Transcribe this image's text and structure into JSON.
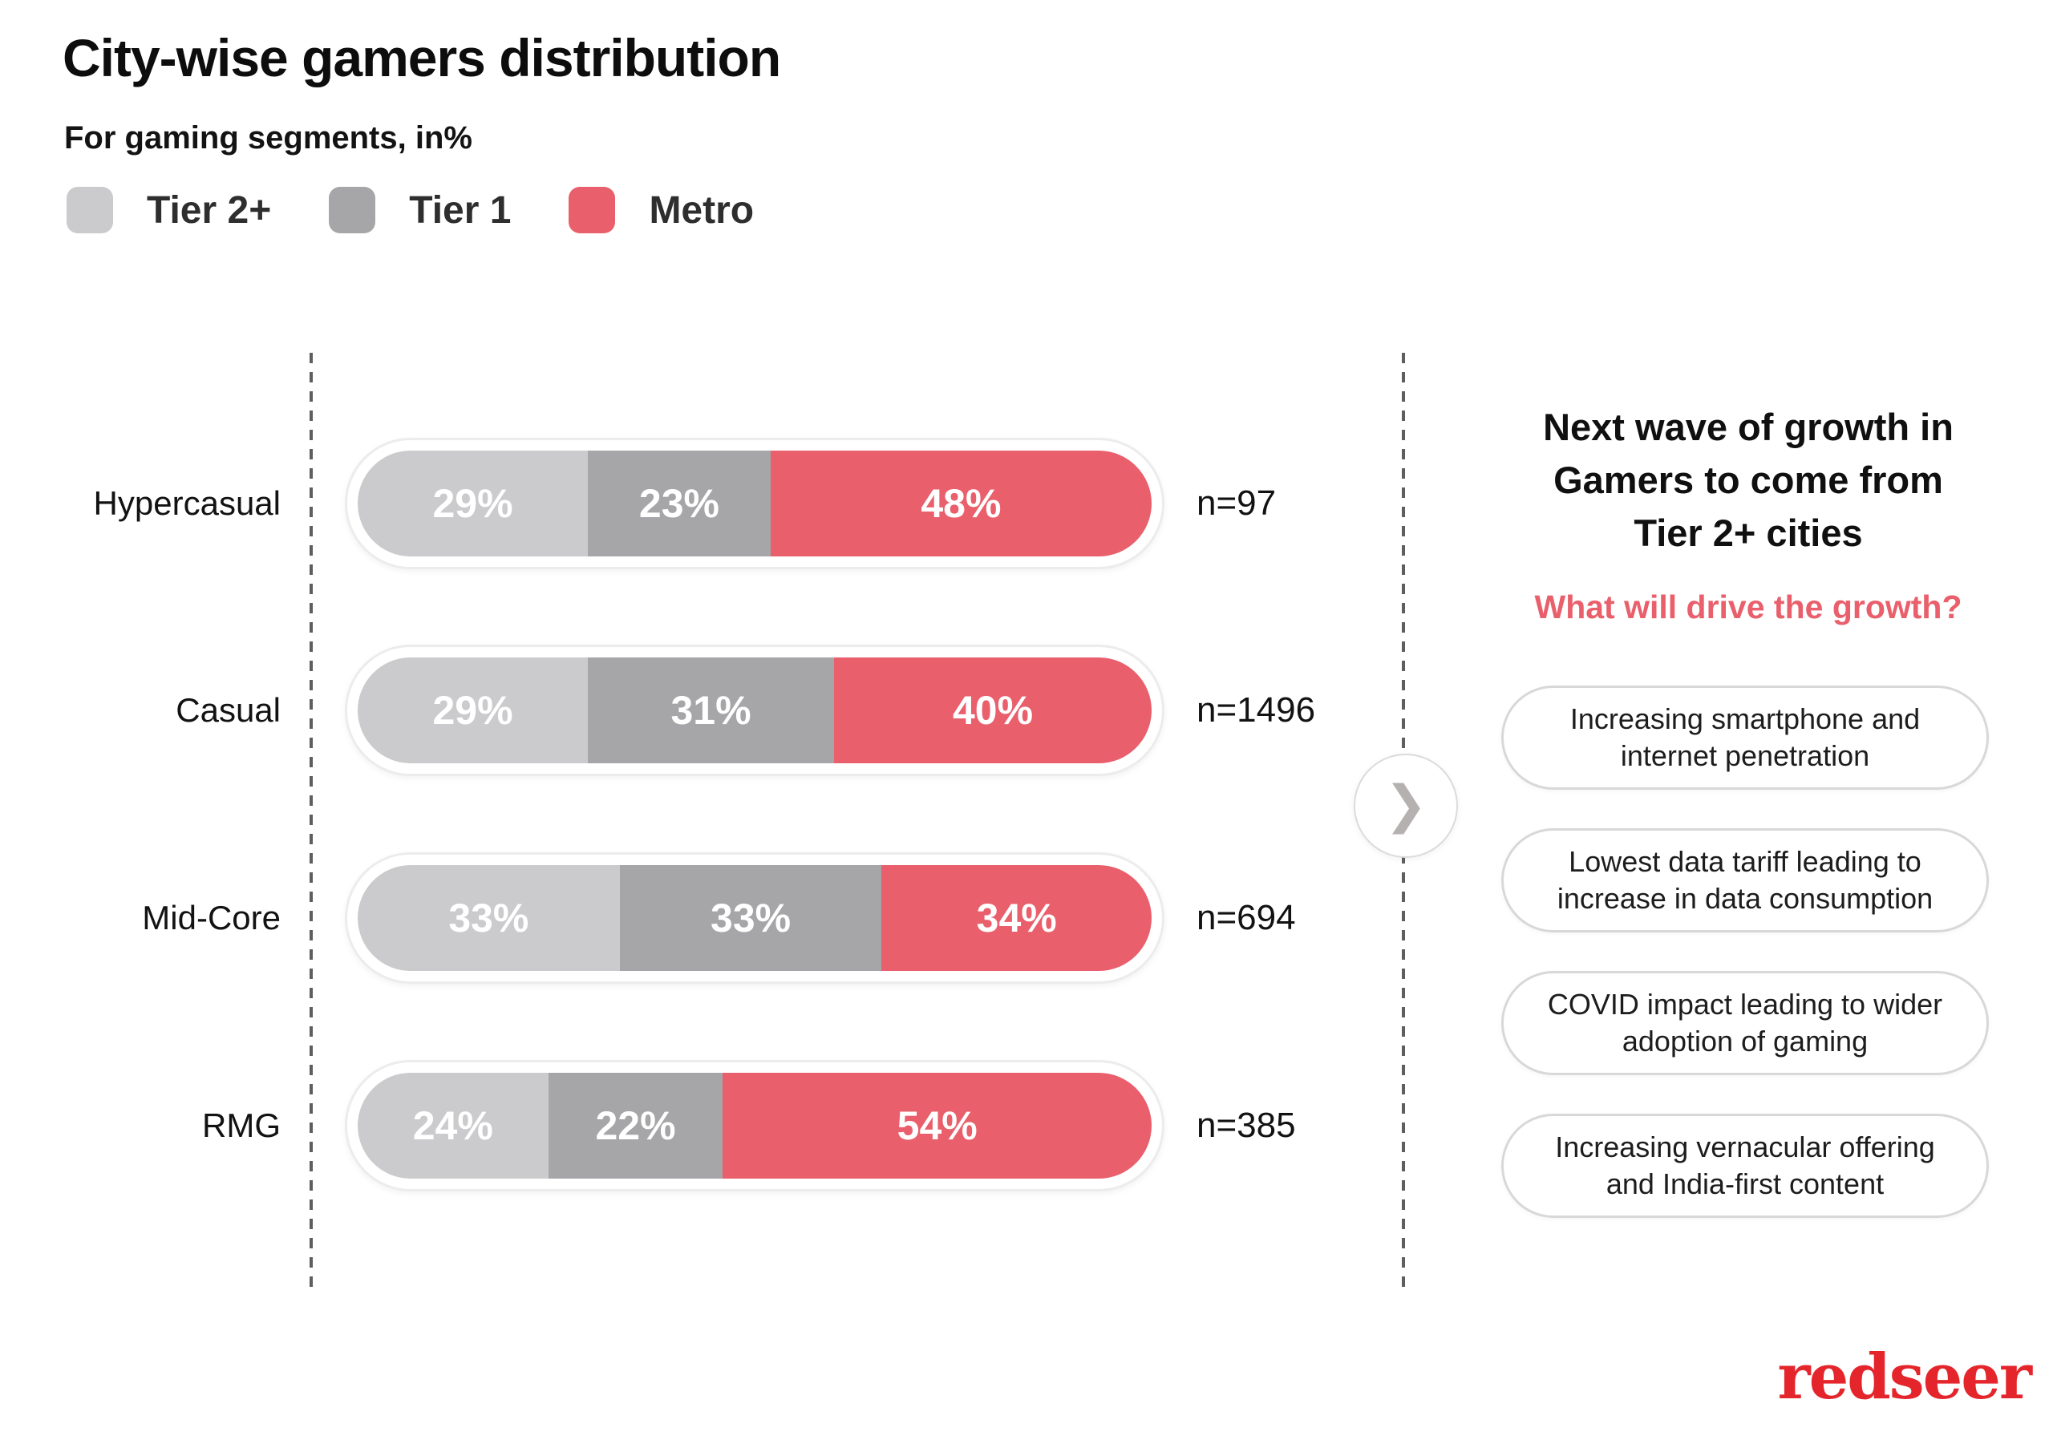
{
  "title": "City-wise gamers distribution",
  "subtitle": "For gaming segments, in%",
  "chart_data": {
    "type": "bar",
    "orientation": "horizontal-stacked",
    "title": "City-wise gamers distribution",
    "subtitle": "For gaming segments, in%",
    "categories": [
      "Hypercasual",
      "Casual",
      "Mid-Core",
      "RMG"
    ],
    "series": [
      {
        "name": "Tier 2+",
        "color": "#cbcbcd",
        "values": [
          29,
          29,
          33,
          24
        ]
      },
      {
        "name": "Tier 1",
        "color": "#a6a5a7",
        "values": [
          23,
          31,
          33,
          22
        ]
      },
      {
        "name": "Metro",
        "color": "#e95f6b",
        "values": [
          48,
          40,
          34,
          54
        ]
      }
    ],
    "n_labels": [
      "n=97",
      "n=1496",
      "n=694",
      "n=385"
    ],
    "value_suffix": "%",
    "xlim": [
      0,
      100
    ],
    "grid": false,
    "legend_position": "top-left"
  },
  "right_panel": {
    "heading_lines": [
      "Next wave of growth in",
      "Gamers to come from",
      "Tier 2+ cities"
    ],
    "question": "What will drive the growth?",
    "question_color": "#e95f6b",
    "drivers": [
      {
        "lines": [
          "Increasing smartphone and",
          "internet penetration"
        ]
      },
      {
        "lines": [
          "Lowest data tariff leading to",
          "increase in data consumption"
        ]
      },
      {
        "lines": [
          "COVID impact leading to wider",
          "adoption of gaming"
        ]
      },
      {
        "lines": [
          "Increasing vernacular offering",
          "and India-first content"
        ]
      }
    ]
  },
  "icons": {
    "chevron_right": "❯"
  },
  "branding": {
    "logo_text": "redseer",
    "logo_color": "#e4262c"
  }
}
